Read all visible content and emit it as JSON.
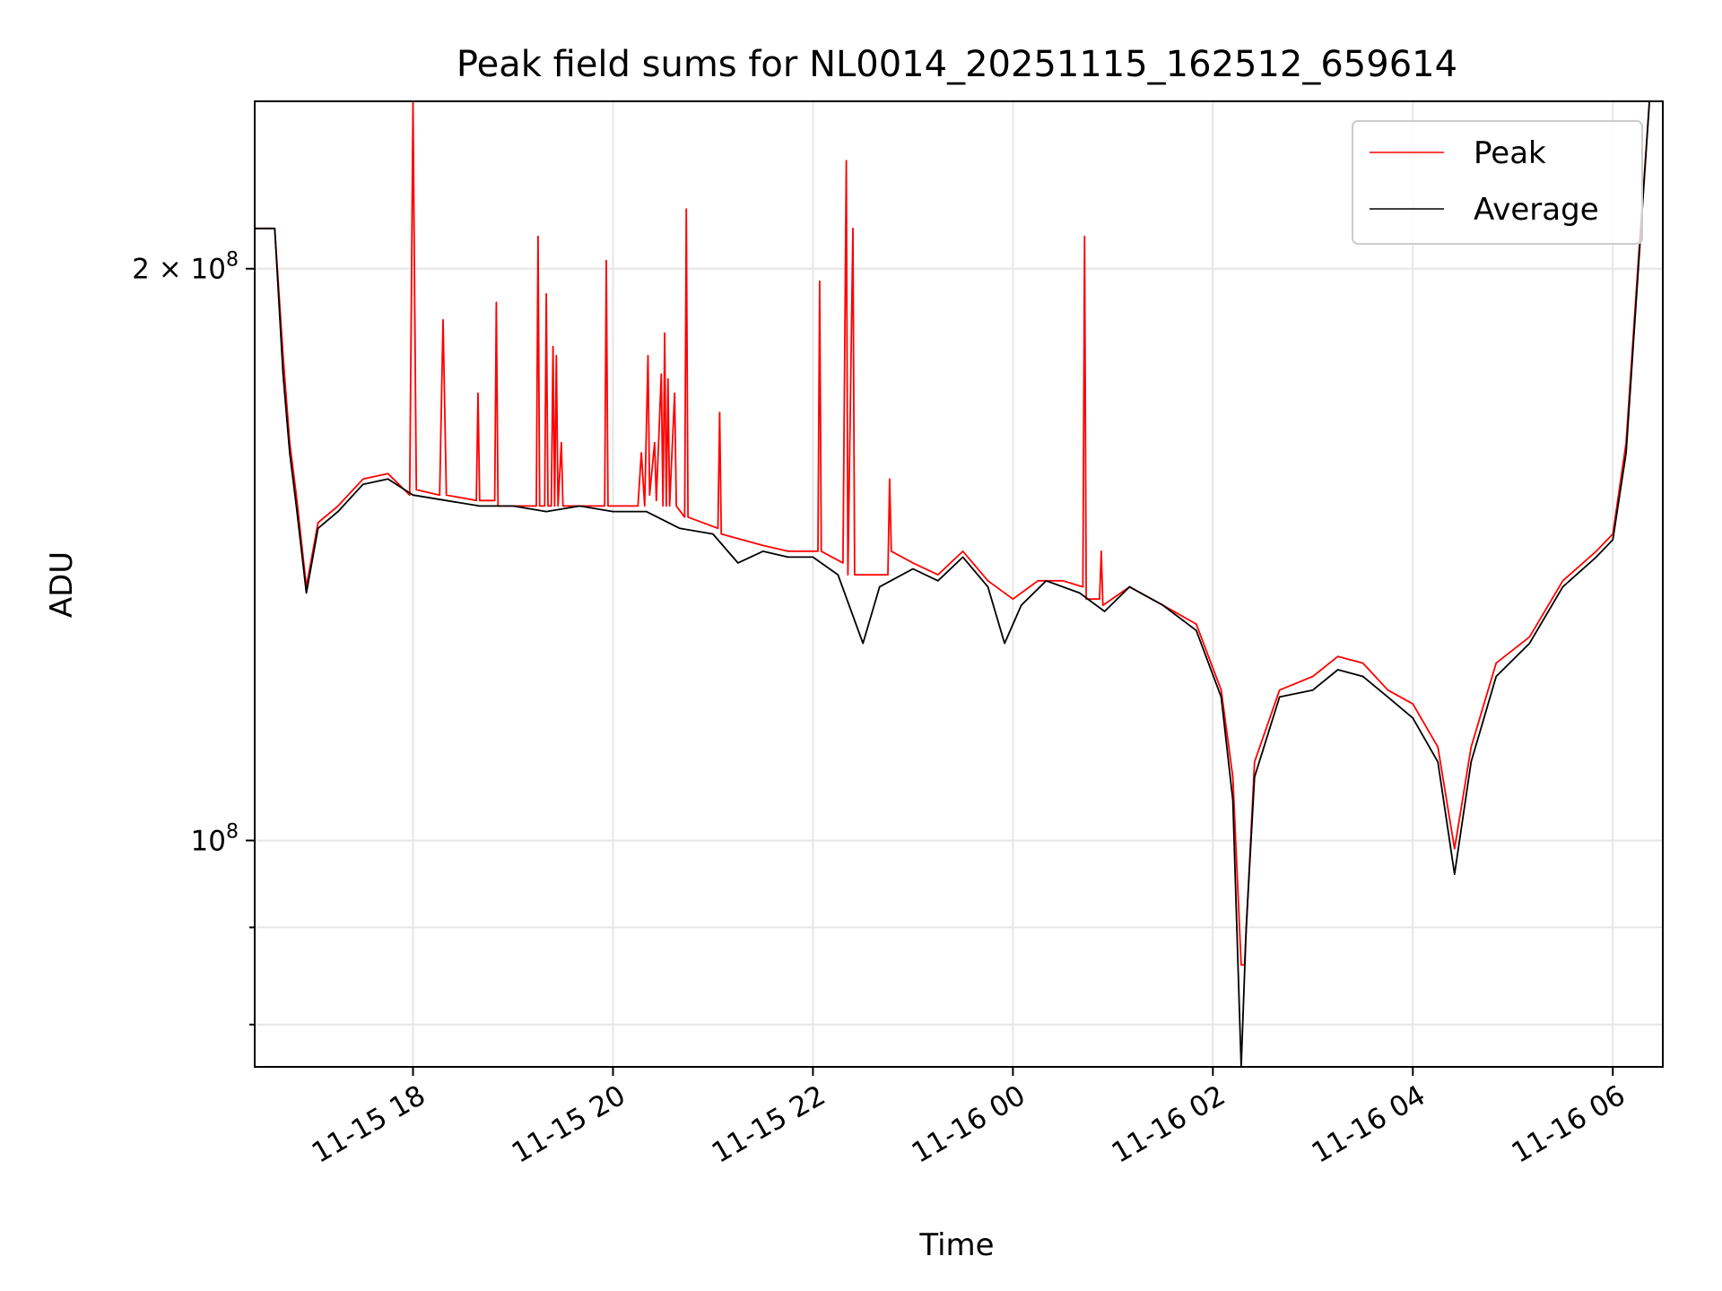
{
  "chart_data": {
    "type": "line",
    "title": "Peak field sums for NL0014_20251115_162512_659614",
    "xlabel": "Time",
    "ylabel": "ADU",
    "x_range": [
      "2025-11-15 16:25",
      "2025-11-16 06:30"
    ],
    "ylim": [
      76000000,
      245000000
    ],
    "y_scale": "log",
    "grid": true,
    "legend_position": "top-right",
    "x_ticks": [
      "11-15 18",
      "11-15 20",
      "11-15 22",
      "11-16 00",
      "11-16 02",
      "11-16 04",
      "11-16 06"
    ],
    "y_ticks": [
      {
        "value": 100000000,
        "base": "10",
        "exp": "8",
        "mantissa": ""
      },
      {
        "value": 200000000,
        "base": "10",
        "exp": "8",
        "mantissa": "2 × "
      }
    ],
    "colors": {
      "peak": "#ff0000",
      "average": "#000000",
      "grid": "#e6e6e6"
    },
    "series": [
      {
        "name": "Peak",
        "color": "#ff0000",
        "points": [
          [
            "2025-11-15 16:25",
            210000000.0
          ],
          [
            "2025-11-15 16:37",
            210000000.0
          ],
          [
            "2025-11-15 16:42",
            180000000.0
          ],
          [
            "2025-11-15 16:46",
            162000000.0
          ],
          [
            "2025-11-15 16:50",
            152000000.0
          ],
          [
            "2025-11-15 16:56",
            136000000.0
          ],
          [
            "2025-11-15 17:03",
            147000000.0
          ],
          [
            "2025-11-15 17:15",
            150000000.0
          ],
          [
            "2025-11-15 17:30",
            155000000.0
          ],
          [
            "2025-11-15 17:45",
            156000000.0
          ],
          [
            "2025-11-15 17:58",
            152000000.0
          ],
          [
            "2025-11-15 18:00",
            245000000.0
          ],
          [
            "2025-11-15 18:02",
            153000000.0
          ],
          [
            "2025-11-15 18:16",
            152000000.0
          ],
          [
            "2025-11-15 18:18",
            188000000.0
          ],
          [
            "2025-11-15 18:20",
            152000000.0
          ],
          [
            "2025-11-15 18:38",
            151000000.0
          ],
          [
            "2025-11-15 18:39",
            172000000.0
          ],
          [
            "2025-11-15 18:40",
            151000000.0
          ],
          [
            "2025-11-15 18:49",
            151000000.0
          ],
          [
            "2025-11-15 18:50",
            192000000.0
          ],
          [
            "2025-11-15 18:51",
            150000000.0
          ],
          [
            "2025-11-15 19:14",
            150000000.0
          ],
          [
            "2025-11-15 19:15",
            208000000.0
          ],
          [
            "2025-11-15 19:16",
            150000000.0
          ],
          [
            "2025-11-15 19:19",
            150000000.0
          ],
          [
            "2025-11-15 19:20",
            194000000.0
          ],
          [
            "2025-11-15 19:21",
            150000000.0
          ],
          [
            "2025-11-15 19:23",
            150000000.0
          ],
          [
            "2025-11-15 19:24",
            182000000.0
          ],
          [
            "2025-11-15 19:25",
            150000000.0
          ],
          [
            "2025-11-15 19:26",
            180000000.0
          ],
          [
            "2025-11-15 19:27",
            150000000.0
          ],
          [
            "2025-11-15 19:29",
            162000000.0
          ],
          [
            "2025-11-15 19:30",
            150000000.0
          ],
          [
            "2025-11-15 19:55",
            150000000.0
          ],
          [
            "2025-11-15 19:56",
            202000000.0
          ],
          [
            "2025-11-15 19:57",
            150000000.0
          ],
          [
            "2025-11-15 20:15",
            150000000.0
          ],
          [
            "2025-11-15 20:17",
            160000000.0
          ],
          [
            "2025-11-15 20:19",
            150000000.0
          ],
          [
            "2025-11-15 20:21",
            180000000.0
          ],
          [
            "2025-11-15 20:22",
            152000000.0
          ],
          [
            "2025-11-15 20:25",
            162000000.0
          ],
          [
            "2025-11-15 20:26",
            151000000.0
          ],
          [
            "2025-11-15 20:29",
            176000000.0
          ],
          [
            "2025-11-15 20:30",
            150000000.0
          ],
          [
            "2025-11-15 20:31",
            185000000.0
          ],
          [
            "2025-11-15 20:32",
            150000000.0
          ],
          [
            "2025-11-15 20:33",
            175000000.0
          ],
          [
            "2025-11-15 20:34",
            150000000.0
          ],
          [
            "2025-11-15 20:37",
            172000000.0
          ],
          [
            "2025-11-15 20:38",
            150000000.0
          ],
          [
            "2025-11-15 20:43",
            148000000.0
          ],
          [
            "2025-11-15 20:44",
            215000000.0
          ],
          [
            "2025-11-15 20:45",
            148000000.0
          ],
          [
            "2025-11-15 21:03",
            146000000.0
          ],
          [
            "2025-11-15 21:04",
            168000000.0
          ],
          [
            "2025-11-15 21:05",
            145000000.0
          ],
          [
            "2025-11-15 21:30",
            143000000.0
          ],
          [
            "2025-11-15 21:45",
            142000000.0
          ],
          [
            "2025-11-15 22:03",
            142000000.0
          ],
          [
            "2025-11-15 22:04",
            197000000.0
          ],
          [
            "2025-11-15 22:05",
            142000000.0
          ],
          [
            "2025-11-15 22:18",
            140000000.0
          ],
          [
            "2025-11-15 22:20",
            228000000.0
          ],
          [
            "2025-11-15 22:21",
            138000000.0
          ],
          [
            "2025-11-15 22:24",
            210000000.0
          ],
          [
            "2025-11-15 22:25",
            138000000.0
          ],
          [
            "2025-11-15 22:45",
            138000000.0
          ],
          [
            "2025-11-15 22:46",
            155000000.0
          ],
          [
            "2025-11-15 22:47",
            142000000.0
          ],
          [
            "2025-11-15 23:00",
            140000000.0
          ],
          [
            "2025-11-15 23:15",
            138000000.0
          ],
          [
            "2025-11-15 23:30",
            142000000.0
          ],
          [
            "2025-11-15 23:45",
            137000000.0
          ],
          [
            "2025-11-16 00:00",
            134000000.0
          ],
          [
            "2025-11-16 00:15",
            137000000.0
          ],
          [
            "2025-11-16 00:30",
            137000000.0
          ],
          [
            "2025-11-16 00:42",
            136000000.0
          ],
          [
            "2025-11-16 00:43",
            208000000.0
          ],
          [
            "2025-11-16 00:44",
            134000000.0
          ],
          [
            "2025-11-16 00:52",
            134000000.0
          ],
          [
            "2025-11-16 00:53",
            142000000.0
          ],
          [
            "2025-11-16 00:54",
            133000000.0
          ],
          [
            "2025-11-16 01:10",
            136000000.0
          ],
          [
            "2025-11-16 01:30",
            133000000.0
          ],
          [
            "2025-11-16 01:50",
            130000000.0
          ],
          [
            "2025-11-16 02:05",
            120000000.0
          ],
          [
            "2025-11-16 02:12",
            108000000.0
          ],
          [
            "2025-11-16 02:17",
            86000000.0
          ],
          [
            "2025-11-16 02:19",
            86000000.0
          ],
          [
            "2025-11-16 02:25",
            110000000.0
          ],
          [
            "2025-11-16 02:40",
            120000000.0
          ],
          [
            "2025-11-16 03:00",
            122000000.0
          ],
          [
            "2025-11-16 03:15",
            125000000.0
          ],
          [
            "2025-11-16 03:30",
            124000000.0
          ],
          [
            "2025-11-16 03:45",
            120000000.0
          ],
          [
            "2025-11-16 04:00",
            118000000.0
          ],
          [
            "2025-11-16 04:15",
            112000000.0
          ],
          [
            "2025-11-16 04:25",
            99000000.0
          ],
          [
            "2025-11-16 04:35",
            112000000.0
          ],
          [
            "2025-11-16 04:50",
            124000000.0
          ],
          [
            "2025-11-16 05:10",
            128000000.0
          ],
          [
            "2025-11-16 05:30",
            137000000.0
          ],
          [
            "2025-11-16 05:50",
            142000000.0
          ],
          [
            "2025-11-16 06:00",
            145000000.0
          ],
          [
            "2025-11-16 06:08",
            162000000.0
          ],
          [
            "2025-11-16 06:15",
            200000000.0
          ],
          [
            "2025-11-16 06:22",
            245000000.0
          ]
        ]
      },
      {
        "name": "Average",
        "color": "#000000",
        "points": [
          [
            "2025-11-15 16:25",
            210000000.0
          ],
          [
            "2025-11-15 16:37",
            210000000.0
          ],
          [
            "2025-11-15 16:42",
            176000000.0
          ],
          [
            "2025-11-15 16:46",
            160000000.0
          ],
          [
            "2025-11-15 16:50",
            150000000.0
          ],
          [
            "2025-11-15 16:56",
            135000000.0
          ],
          [
            "2025-11-15 17:03",
            146000000.0
          ],
          [
            "2025-11-15 17:15",
            149000000.0
          ],
          [
            "2025-11-15 17:30",
            154000000.0
          ],
          [
            "2025-11-15 17:45",
            155000000.0
          ],
          [
            "2025-11-15 18:00",
            152000000.0
          ],
          [
            "2025-11-15 18:20",
            151000000.0
          ],
          [
            "2025-11-15 18:40",
            150000000.0
          ],
          [
            "2025-11-15 19:00",
            150000000.0
          ],
          [
            "2025-11-15 19:20",
            149000000.0
          ],
          [
            "2025-11-15 19:40",
            150000000.0
          ],
          [
            "2025-11-15 20:00",
            149000000.0
          ],
          [
            "2025-11-15 20:20",
            149000000.0
          ],
          [
            "2025-11-15 20:40",
            146000000.0
          ],
          [
            "2025-11-15 21:00",
            145000000.0
          ],
          [
            "2025-11-15 21:15",
            140000000.0
          ],
          [
            "2025-11-15 21:30",
            142000000.0
          ],
          [
            "2025-11-15 21:45",
            141000000.0
          ],
          [
            "2025-11-15 22:00",
            141000000.0
          ],
          [
            "2025-11-15 22:15",
            138000000.0
          ],
          [
            "2025-11-15 22:30",
            127000000.0
          ],
          [
            "2025-11-15 22:40",
            136000000.0
          ],
          [
            "2025-11-15 23:00",
            139000000.0
          ],
          [
            "2025-11-15 23:15",
            137000000.0
          ],
          [
            "2025-11-15 23:30",
            141000000.0
          ],
          [
            "2025-11-15 23:45",
            136000000.0
          ],
          [
            "2025-11-15 23:55",
            127000000.0
          ],
          [
            "2025-11-16 00:05",
            133000000.0
          ],
          [
            "2025-11-16 00:20",
            137000000.0
          ],
          [
            "2025-11-16 00:40",
            135000000.0
          ],
          [
            "2025-11-16 00:55",
            132000000.0
          ],
          [
            "2025-11-16 01:10",
            136000000.0
          ],
          [
            "2025-11-16 01:30",
            133000000.0
          ],
          [
            "2025-11-16 01:50",
            129000000.0
          ],
          [
            "2025-11-16 02:05",
            119000000.0
          ],
          [
            "2025-11-16 02:12",
            105000000.0
          ],
          [
            "2025-11-16 02:17",
            76000000.0
          ],
          [
            "2025-11-16 02:20",
            90000000.0
          ],
          [
            "2025-11-16 02:25",
            108000000.0
          ],
          [
            "2025-11-16 02:40",
            119000000.0
          ],
          [
            "2025-11-16 03:00",
            120000000.0
          ],
          [
            "2025-11-16 03:15",
            123000000.0
          ],
          [
            "2025-11-16 03:30",
            122000000.0
          ],
          [
            "2025-11-16 03:45",
            119000000.0
          ],
          [
            "2025-11-16 04:00",
            116000000.0
          ],
          [
            "2025-11-16 04:15",
            110000000.0
          ],
          [
            "2025-11-16 04:25",
            96000000.0
          ],
          [
            "2025-11-16 04:35",
            110000000.0
          ],
          [
            "2025-11-16 04:50",
            122000000.0
          ],
          [
            "2025-11-16 05:10",
            127000000.0
          ],
          [
            "2025-11-16 05:30",
            136000000.0
          ],
          [
            "2025-11-16 05:50",
            141000000.0
          ],
          [
            "2025-11-16 06:00",
            144000000.0
          ],
          [
            "2025-11-16 06:08",
            160000000.0
          ],
          [
            "2025-11-16 06:15",
            198000000.0
          ],
          [
            "2025-11-16 06:22",
            245000000.0
          ]
        ]
      }
    ]
  }
}
